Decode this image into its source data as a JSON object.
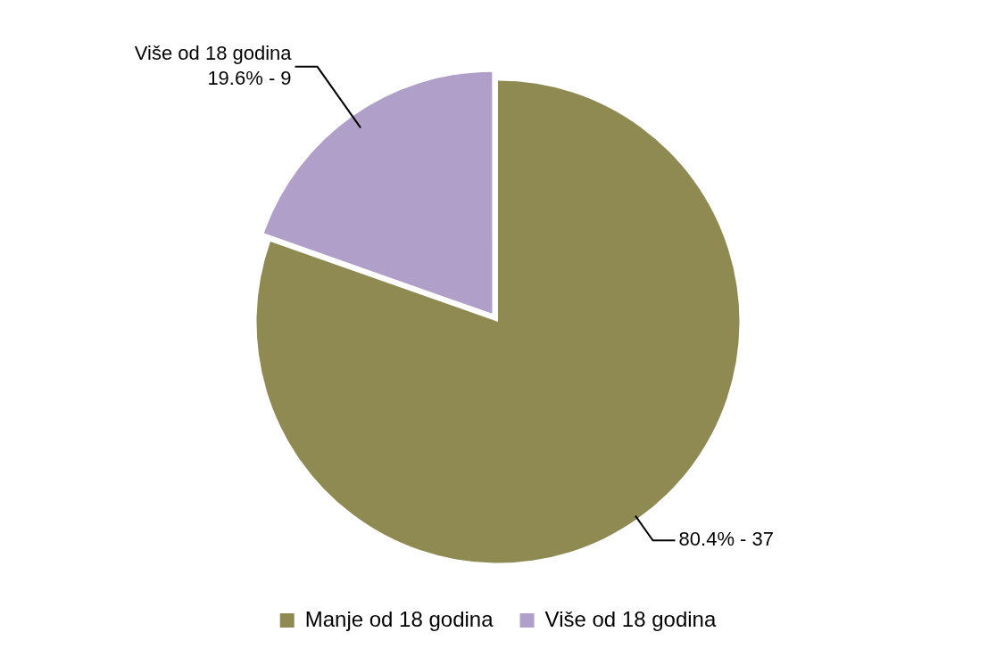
{
  "chart_data": {
    "type": "pie",
    "categories": [
      "Manje od 18 godina",
      "Više od 18 godina"
    ],
    "values": [
      80.4,
      19.6
    ],
    "colors": [
      "#8f8a52",
      "#b09fc8"
    ],
    "value_labels": [
      "80.4% - 37",
      "Više od 18 godina\n19.6% - 9"
    ],
    "legend": "bottom"
  }
}
